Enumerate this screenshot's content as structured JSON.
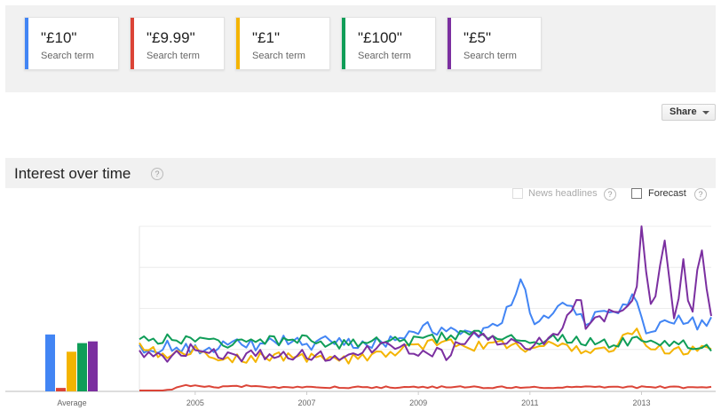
{
  "search_terms": [
    {
      "term": "\"£10\"",
      "subtitle": "Search term",
      "color": "#4285f4"
    },
    {
      "term": "\"£9.99\"",
      "subtitle": "Search term",
      "color": "#db4437"
    },
    {
      "term": "\"£1\"",
      "subtitle": "Search term",
      "color": "#f4b400"
    },
    {
      "term": "\"£100\"",
      "subtitle": "Search term",
      "color": "#0f9d58"
    },
    {
      "term": "\"£5\"",
      "subtitle": "Search term",
      "color": "#7b2fa0"
    }
  ],
  "share_label": "Share",
  "section": {
    "title": "Interest over time",
    "help_glyph": "?",
    "news_headlines_label": "News headlines",
    "forecast_label": "Forecast"
  },
  "chart_data": {
    "type": "line",
    "average_label": "Average",
    "averages": [
      {
        "name": "\"£10\"",
        "value": 33,
        "color": "#4285f4"
      },
      {
        "name": "\"£9.99\"",
        "value": 2,
        "color": "#db4437"
      },
      {
        "name": "\"£1\"",
        "value": 23,
        "color": "#f4b400"
      },
      {
        "name": "\"£100\"",
        "value": 28,
        "color": "#0f9d58"
      },
      {
        "name": "\"£5\"",
        "value": 29,
        "color": "#7b2fa0"
      }
    ],
    "x_range": [
      2004.0,
      2014.25
    ],
    "ylim": [
      0,
      100
    ],
    "x_tick_labels": [
      "2005",
      "2007",
      "2009",
      "2011",
      "2013"
    ],
    "x_ticks": [
      2005,
      2007,
      2009,
      2011,
      2013
    ],
    "sample_interval": "monthly",
    "series": [
      {
        "name": "\"£10\"",
        "color": "#4285f4",
        "anchors": [
          [
            2004.0,
            24
          ],
          [
            2004.5,
            28
          ],
          [
            2005.0,
            24
          ],
          [
            2005.5,
            29
          ],
          [
            2006.0,
            27
          ],
          [
            2006.5,
            30
          ],
          [
            2007.0,
            28
          ],
          [
            2007.5,
            30
          ],
          [
            2008.0,
            27
          ],
          [
            2008.5,
            30
          ],
          [
            2009.0,
            34
          ],
          [
            2009.1,
            45
          ],
          [
            2009.3,
            36
          ],
          [
            2009.6,
            38
          ],
          [
            2010.0,
            34
          ],
          [
            2010.5,
            42
          ],
          [
            2010.85,
            69
          ],
          [
            2011.0,
            44
          ],
          [
            2011.2,
            42
          ],
          [
            2011.6,
            54
          ],
          [
            2012.0,
            42
          ],
          [
            2012.5,
            48
          ],
          [
            2012.9,
            56
          ],
          [
            2013.1,
            32
          ],
          [
            2013.5,
            44
          ],
          [
            2014.0,
            40
          ],
          [
            2014.25,
            44
          ]
        ]
      },
      {
        "name": "\"£9.99\"",
        "color": "#db4437",
        "anchors": [
          [
            2004.0,
            0
          ],
          [
            2004.6,
            0
          ],
          [
            2004.7,
            3
          ],
          [
            2005.0,
            3
          ],
          [
            2005.5,
            2
          ],
          [
            2006.0,
            3
          ],
          [
            2006.5,
            2
          ],
          [
            2007.0,
            2
          ],
          [
            2007.5,
            2
          ],
          [
            2008.0,
            2
          ],
          [
            2008.5,
            2
          ],
          [
            2009.0,
            2
          ],
          [
            2009.5,
            2
          ],
          [
            2010.0,
            2
          ],
          [
            2010.5,
            2
          ],
          [
            2011.0,
            2
          ],
          [
            2011.5,
            2
          ],
          [
            2012.0,
            2
          ],
          [
            2012.5,
            2
          ],
          [
            2013.0,
            2
          ],
          [
            2013.5,
            2
          ],
          [
            2014.0,
            2
          ],
          [
            2014.25,
            2
          ]
        ]
      },
      {
        "name": "\"£1\"",
        "color": "#f4b400",
        "anchors": [
          [
            2004.0,
            28
          ],
          [
            2004.5,
            20
          ],
          [
            2005.0,
            24
          ],
          [
            2005.5,
            19
          ],
          [
            2006.0,
            20
          ],
          [
            2006.5,
            21
          ],
          [
            2007.0,
            20
          ],
          [
            2007.5,
            18
          ],
          [
            2008.0,
            20
          ],
          [
            2008.5,
            22
          ],
          [
            2009.0,
            27
          ],
          [
            2009.5,
            30
          ],
          [
            2010.0,
            27
          ],
          [
            2010.5,
            28
          ],
          [
            2011.0,
            26
          ],
          [
            2011.5,
            28
          ],
          [
            2012.0,
            24
          ],
          [
            2012.5,
            26
          ],
          [
            2012.9,
            38
          ],
          [
            2013.1,
            26
          ],
          [
            2013.5,
            24
          ],
          [
            2014.0,
            24
          ],
          [
            2014.25,
            25
          ]
        ]
      },
      {
        "name": "\"£100\"",
        "color": "#0f9d58",
        "anchors": [
          [
            2004.0,
            30
          ],
          [
            2004.5,
            32
          ],
          [
            2005.0,
            30
          ],
          [
            2005.5,
            28
          ],
          [
            2006.0,
            32
          ],
          [
            2006.5,
            30
          ],
          [
            2007.0,
            32
          ],
          [
            2007.5,
            28
          ],
          [
            2008.0,
            30
          ],
          [
            2008.5,
            30
          ],
          [
            2009.0,
            30
          ],
          [
            2009.5,
            33
          ],
          [
            2010.0,
            36
          ],
          [
            2010.5,
            32
          ],
          [
            2011.0,
            30
          ],
          [
            2011.5,
            32
          ],
          [
            2012.0,
            30
          ],
          [
            2012.5,
            28
          ],
          [
            2013.0,
            31
          ],
          [
            2013.5,
            29
          ],
          [
            2014.0,
            28
          ],
          [
            2014.25,
            27
          ]
        ]
      },
      {
        "name": "\"£5\"",
        "color": "#7b2fa0",
        "anchors": [
          [
            2004.0,
            22
          ],
          [
            2004.5,
            21
          ],
          [
            2005.0,
            26
          ],
          [
            2005.5,
            20
          ],
          [
            2006.0,
            21
          ],
          [
            2006.5,
            22
          ],
          [
            2007.0,
            22
          ],
          [
            2007.5,
            20
          ],
          [
            2008.0,
            24
          ],
          [
            2008.5,
            28
          ],
          [
            2009.0,
            24
          ],
          [
            2009.5,
            22
          ],
          [
            2010.0,
            35
          ],
          [
            2010.5,
            30
          ],
          [
            2011.0,
            26
          ],
          [
            2011.5,
            36
          ],
          [
            2011.9,
            58
          ],
          [
            2012.0,
            40
          ],
          [
            2012.5,
            48
          ],
          [
            2012.9,
            56
          ],
          [
            2013.0,
            100
          ],
          [
            2013.2,
            40
          ],
          [
            2013.4,
            96
          ],
          [
            2013.6,
            40
          ],
          [
            2013.75,
            80
          ],
          [
            2013.9,
            40
          ],
          [
            2014.05,
            94
          ],
          [
            2014.25,
            42
          ]
        ]
      }
    ]
  }
}
